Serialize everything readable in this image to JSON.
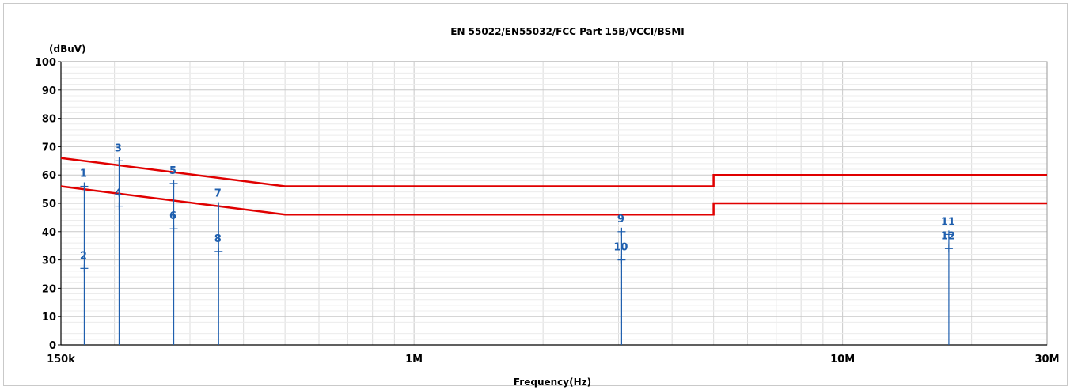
{
  "chart_data": {
    "type": "line",
    "title": "EN 55022/EN55032/FCC Part 15B/VCCI/BSMI",
    "xlabel": "Frequency(Hz)",
    "ylabel": "(dBuV)",
    "xscale": "log",
    "xlim": [
      150000,
      30000000
    ],
    "ylim": [
      0,
      100
    ],
    "x_ticks": [
      {
        "value": 150000,
        "label": "150k"
      },
      {
        "value": 1000000,
        "label": "1M"
      },
      {
        "value": 10000000,
        "label": "10M"
      },
      {
        "value": 30000000,
        "label": "30M"
      }
    ],
    "y_ticks": [
      {
        "value": 0,
        "label": "0"
      },
      {
        "value": 10,
        "label": "10"
      },
      {
        "value": 20,
        "label": "20"
      },
      {
        "value": 30,
        "label": "30"
      },
      {
        "value": 40,
        "label": "40"
      },
      {
        "value": 50,
        "label": "50"
      },
      {
        "value": 60,
        "label": "60"
      },
      {
        "value": 70,
        "label": "70"
      },
      {
        "value": 80,
        "label": "80"
      },
      {
        "value": 90,
        "label": "90"
      },
      {
        "value": 100,
        "label": "100"
      }
    ],
    "grid": true,
    "series": [
      {
        "color": "#e00000",
        "points": [
          [
            150000,
            66
          ],
          [
            500000,
            56
          ],
          [
            5000000,
            56
          ],
          [
            5000000,
            60
          ],
          [
            30000000,
            60
          ]
        ]
      },
      {
        "color": "#e00000",
        "points": [
          [
            150000,
            56
          ],
          [
            500000,
            46
          ],
          [
            5000000,
            46
          ],
          [
            5000000,
            50
          ],
          [
            30000000,
            50
          ]
        ]
      }
    ],
    "markers": [
      {
        "label": "1",
        "x": 170000,
        "y": 56
      },
      {
        "label": "2",
        "x": 170000,
        "y": 27
      },
      {
        "label": "3",
        "x": 205000,
        "y": 65
      },
      {
        "label": "4",
        "x": 205000,
        "y": 49
      },
      {
        "label": "5",
        "x": 275000,
        "y": 57
      },
      {
        "label": "6",
        "x": 275000,
        "y": 41
      },
      {
        "label": "7",
        "x": 350000,
        "y": 49
      },
      {
        "label": "8",
        "x": 350000,
        "y": 33
      },
      {
        "label": "9",
        "x": 3050000,
        "y": 40
      },
      {
        "label": "10",
        "x": 3050000,
        "y": 30
      },
      {
        "label": "11",
        "x": 17700000,
        "y": 39
      },
      {
        "label": "12",
        "x": 17700000,
        "y": 34
      }
    ],
    "colors": {
      "limit": "#e00000",
      "marker": "#1f5fae",
      "grid": "#dcdcdc",
      "axis": "#000000"
    }
  }
}
